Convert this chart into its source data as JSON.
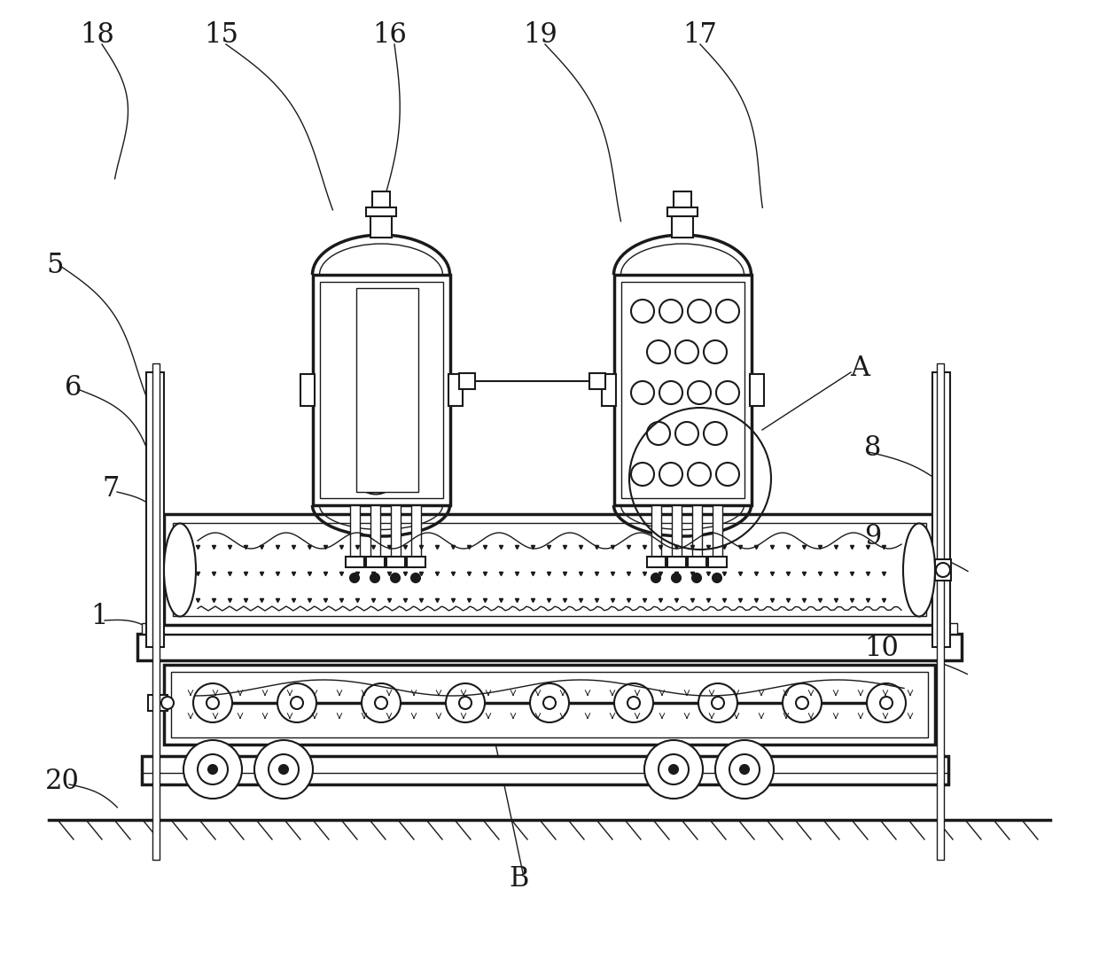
{
  "bg_color": "#ffffff",
  "lc": "#1a1a1a",
  "lw": 1.5,
  "lw2": 2.5,
  "lw1": 1.0,
  "lw3": 3.0,
  "font_size": 22,
  "font_size_small": 18
}
